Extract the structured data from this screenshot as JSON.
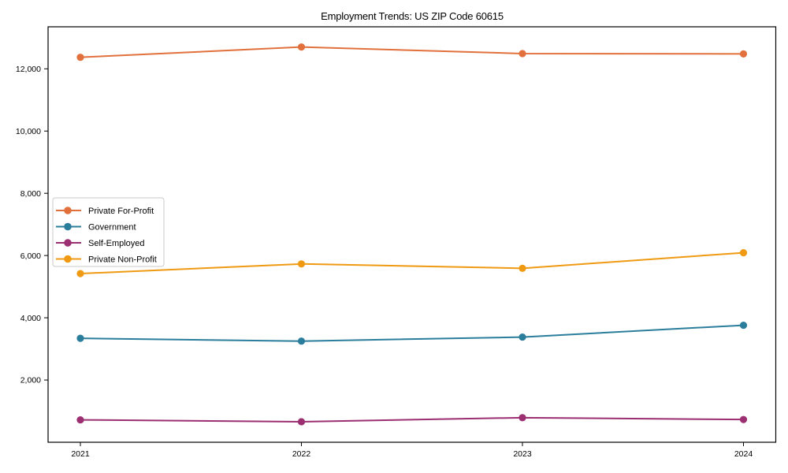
{
  "chart_data": {
    "type": "line",
    "title": "Employment Trends: US ZIP Code 60615",
    "xlabel": "",
    "ylabel": "",
    "categories": [
      "2021",
      "2022",
      "2023",
      "2024"
    ],
    "series": [
      {
        "name": "Private For-Profit",
        "color": "#e2703c",
        "values": [
          12370,
          12700,
          12490,
          12480
        ]
      },
      {
        "name": "Government",
        "color": "#2b7d9c",
        "values": [
          3340,
          3250,
          3380,
          3760
        ]
      },
      {
        "name": "Self-Employed",
        "color": "#9c2e72",
        "values": [
          720,
          660,
          790,
          730
        ]
      },
      {
        "name": "Private Non-Profit",
        "color": "#ef9a12",
        "values": [
          5420,
          5730,
          5590,
          6090
        ]
      }
    ],
    "yticks": [
      {
        "value": 2000,
        "label": "2,000"
      },
      {
        "value": 4000,
        "label": "4,000"
      },
      {
        "value": 6000,
        "label": "6,000"
      },
      {
        "value": 8000,
        "label": "8,000"
      },
      {
        "value": 10000,
        "label": "10,000"
      },
      {
        "value": 12000,
        "label": "12,000"
      }
    ],
    "ylim": [
      0,
      13350
    ],
    "grid": false,
    "legend_position": "center-left",
    "axis_color": "#000000",
    "legend_border_color": "#c9c9c9",
    "background": "#ffffff"
  }
}
